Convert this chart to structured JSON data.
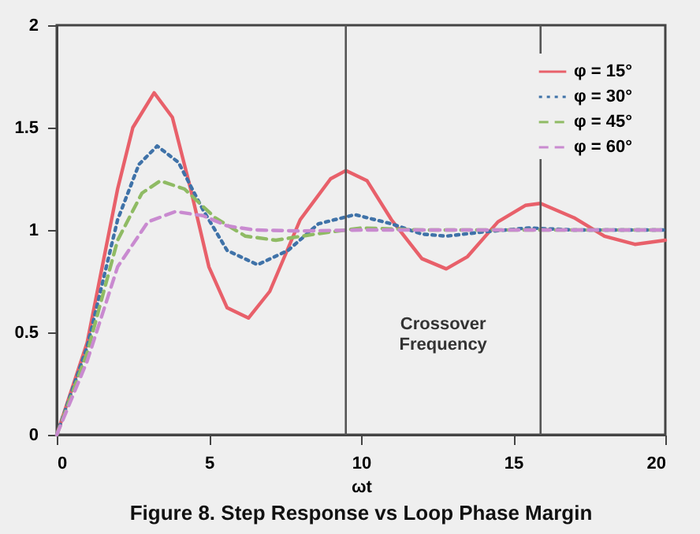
{
  "chart_data": {
    "type": "line",
    "title": "Figure 8. Step Response vs Loop Phase Margin",
    "xlabel": "ωt",
    "xlim": [
      0,
      20
    ],
    "xticks": [
      0,
      5,
      10,
      15,
      20
    ],
    "ylim": [
      0,
      2
    ],
    "yticks": [
      0,
      0.5,
      1,
      1.5,
      2
    ],
    "grid": false,
    "legend": "top right",
    "marker": "none",
    "series": [
      {
        "name": "φ = 15°",
        "color": "#e8606a",
        "line_style": "solid",
        "x": [
          0,
          1,
          2,
          2.5,
          3.2,
          3.8,
          4.4,
          5,
          5.6,
          6.3,
          7,
          8,
          9,
          9.5,
          10.2,
          11,
          12,
          12.8,
          13.5,
          14.5,
          15.4,
          15.9,
          17,
          18,
          19,
          20
        ],
        "values": [
          0,
          0.45,
          1.2,
          1.5,
          1.67,
          1.55,
          1.2,
          0.82,
          0.62,
          0.57,
          0.7,
          1.05,
          1.25,
          1.29,
          1.24,
          1.05,
          0.86,
          0.81,
          0.87,
          1.04,
          1.12,
          1.13,
          1.06,
          0.97,
          0.93,
          0.95
        ]
      },
      {
        "name": "φ = 30°",
        "color": "#3f72a8",
        "line_style": "dotted",
        "x": [
          0,
          1,
          2,
          2.7,
          3.3,
          4,
          4.8,
          5.6,
          6.6,
          7.6,
          8.6,
          9.8,
          11,
          12,
          12.8,
          14,
          15.5,
          17,
          20
        ],
        "values": [
          0,
          0.43,
          1.05,
          1.32,
          1.41,
          1.33,
          1.1,
          0.9,
          0.83,
          0.9,
          1.03,
          1.075,
          1.03,
          0.98,
          0.97,
          0.99,
          1.01,
          1.0,
          1.0
        ]
      },
      {
        "name": "φ = 45°",
        "color": "#8fbb64",
        "line_style": "dashed",
        "x": [
          0,
          1,
          2,
          2.8,
          3.4,
          4.2,
          5.2,
          6.2,
          7.2,
          8.5,
          10,
          12,
          15,
          20
        ],
        "values": [
          0,
          0.4,
          0.95,
          1.18,
          1.24,
          1.2,
          1.06,
          0.97,
          0.95,
          0.98,
          1.01,
          1.0,
          1.0,
          1.0
        ]
      },
      {
        "name": "φ = 60°",
        "color": "#c98ad0",
        "line_style": "dashed",
        "x": [
          0,
          1,
          2,
          3,
          3.9,
          4.8,
          5.6,
          6.5,
          8,
          10,
          15,
          20
        ],
        "values": [
          0,
          0.36,
          0.82,
          1.04,
          1.09,
          1.07,
          1.02,
          1.0,
          0.995,
          1.0,
          1.0,
          1.0
        ]
      }
    ],
    "ref_lines": [
      {
        "axis": "x",
        "value": 9.5,
        "color": "#555555"
      },
      {
        "axis": "x",
        "value": 15.9,
        "color": "#555555"
      }
    ],
    "annotations": [
      "Crossover Frequency"
    ]
  }
}
